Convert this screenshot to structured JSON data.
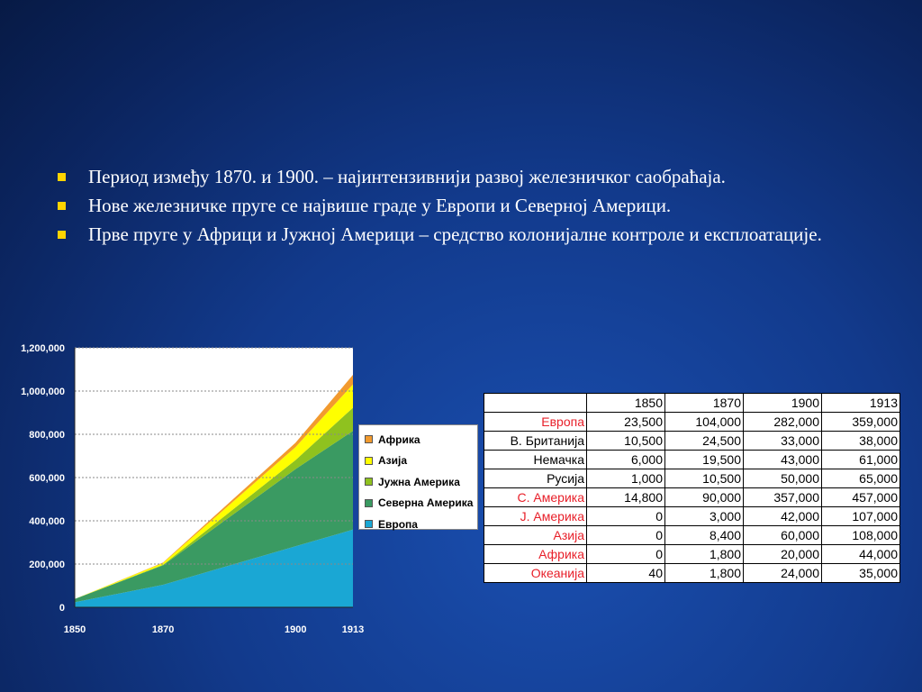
{
  "slide": {
    "bullets": [
      "Период између 1870. и 1900. – најинтензивнији развој железничког саобраћаја.",
      "Нове железничке пруге се највише граде у Европи и Северној Америци.",
      "Прве пруге у Африци и Јужној Америци – средство колонијалне контроле и експлоатације."
    ],
    "bullet_color": "#ffd400"
  },
  "chart_data": {
    "type": "area",
    "stacked": true,
    "x": [
      1850,
      1870,
      1900,
      1913
    ],
    "x_tick_labels": [
      "1850",
      "1870",
      "1900",
      "1913"
    ],
    "ylim": [
      0,
      1200000
    ],
    "y_ticks": [
      0,
      200000,
      400000,
      600000,
      800000,
      1000000,
      1200000
    ],
    "y_tick_labels": [
      "0",
      "200,000",
      "400,000",
      "600,000",
      "800,000",
      "1,000,000",
      "1,200,000"
    ],
    "grid": true,
    "legend_position": "right",
    "series": [
      {
        "name": "Европа",
        "values": [
          23500,
          104000,
          282000,
          359000
        ],
        "color": "#1aa7d4"
      },
      {
        "name": "Северна Америка",
        "values": [
          14800,
          90000,
          357000,
          457000
        ],
        "color": "#3a9a62"
      },
      {
        "name": "Јужна Америка",
        "values": [
          0,
          3000,
          42000,
          107000
        ],
        "color": "#8fc21f"
      },
      {
        "name": "Азија",
        "values": [
          0,
          8400,
          60000,
          108000
        ],
        "color": "#ffff00"
      },
      {
        "name": "Африка",
        "values": [
          0,
          1800,
          20000,
          44000
        ],
        "color": "#f29a2e"
      }
    ],
    "legend_order": [
      "Африка",
      "Азија",
      "Јужна Америка",
      "Северна Америка",
      "Европа"
    ]
  },
  "table": {
    "headers": [
      "",
      "1850",
      "1870",
      "1900",
      "1913"
    ],
    "rows": [
      {
        "label": "Европа",
        "red": true,
        "values": [
          "23,500",
          "104,000",
          "282,000",
          "359,000"
        ]
      },
      {
        "label": "В. Британија",
        "red": false,
        "values": [
          "10,500",
          "24,500",
          "33,000",
          "38,000"
        ]
      },
      {
        "label": "Немачка",
        "red": false,
        "values": [
          "6,000",
          "19,500",
          "43,000",
          "61,000"
        ]
      },
      {
        "label": "Русија",
        "red": false,
        "values": [
          "1,000",
          "10,500",
          "50,000",
          "65,000"
        ]
      },
      {
        "label": "С. Америка",
        "red": true,
        "values": [
          "14,800",
          "90,000",
          "357,000",
          "457,000"
        ]
      },
      {
        "label": "Ј. Америка",
        "red": true,
        "values": [
          "0",
          "3,000",
          "42,000",
          "107,000"
        ]
      },
      {
        "label": "Азија",
        "red": true,
        "values": [
          "0",
          "8,400",
          "60,000",
          "108,000"
        ]
      },
      {
        "label": "Африка",
        "red": true,
        "values": [
          "0",
          "1,800",
          "20,000",
          "44,000"
        ]
      },
      {
        "label": "Океанија",
        "red": true,
        "values": [
          "40",
          "1,800",
          "24,000",
          "35,000"
        ]
      }
    ]
  }
}
